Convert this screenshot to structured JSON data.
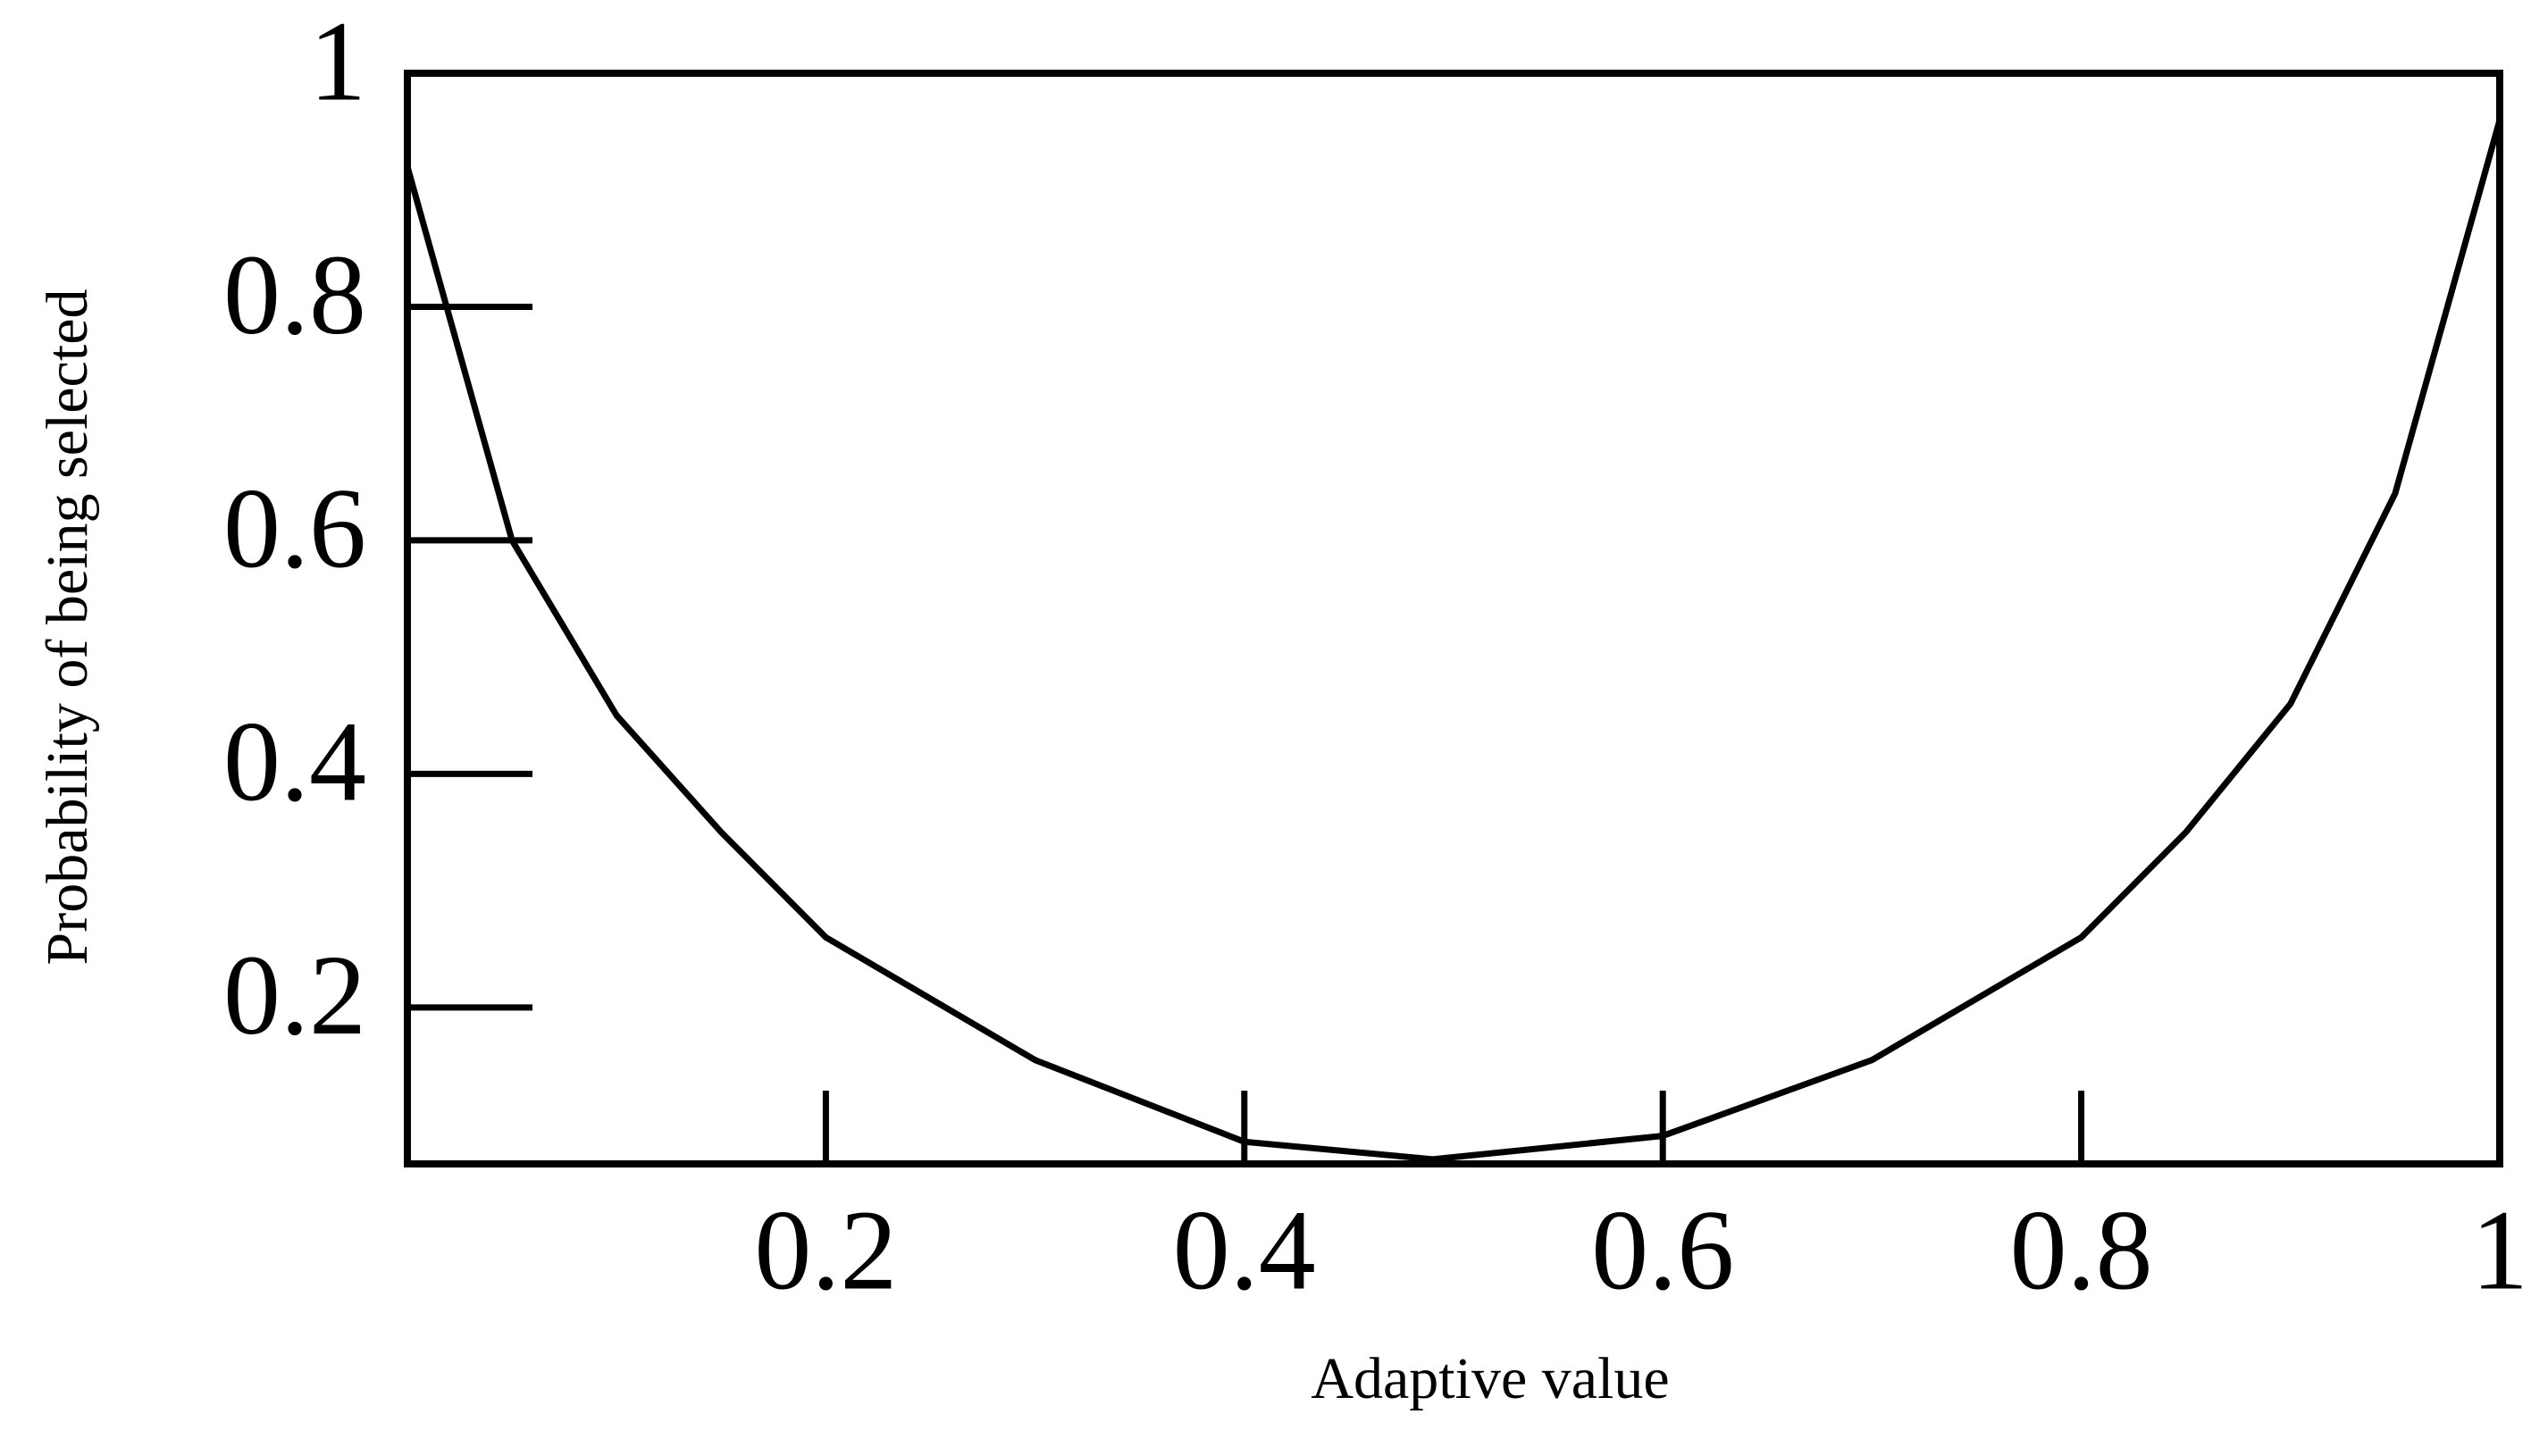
{
  "chart_data": {
    "type": "line",
    "x_label": "Adaptive value",
    "y_label": "Probability of being selected",
    "x": [
      0,
      0.05,
      0.1,
      0.15,
      0.2,
      0.3,
      0.4,
      0.49,
      0.6,
      0.7,
      0.8,
      0.85,
      0.9,
      0.95,
      1
    ],
    "series": [
      {
        "color": "#000000",
        "values": [
          0.92,
          0.6,
          0.45,
          0.35,
          0.26,
          0.155,
          0.085,
          0.07,
          0.09,
          0.155,
          0.26,
          0.35,
          0.46,
          0.64,
          0.96
        ]
      }
    ],
    "xlim": [
      0,
      1
    ],
    "ylim": [
      0.066,
      1
    ],
    "xticks": [
      0.2,
      0.4,
      0.6,
      0.8,
      1
    ],
    "yticks": [
      0.2,
      0.4,
      0.6,
      0.8,
      1
    ],
    "grid": false
  }
}
